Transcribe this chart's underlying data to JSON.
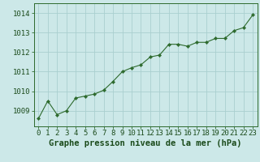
{
  "x": [
    0,
    1,
    2,
    3,
    4,
    5,
    6,
    7,
    8,
    9,
    10,
    11,
    12,
    13,
    14,
    15,
    16,
    17,
    18,
    19,
    20,
    21,
    22,
    23
  ],
  "y": [
    1008.6,
    1009.5,
    1008.8,
    1009.0,
    1009.65,
    1009.75,
    1009.85,
    1010.05,
    1010.5,
    1011.0,
    1011.2,
    1011.35,
    1011.75,
    1011.85,
    1012.4,
    1012.4,
    1012.3,
    1012.5,
    1012.5,
    1012.7,
    1012.7,
    1013.1,
    1013.25,
    1013.9
  ],
  "line_color": "#2d6a2d",
  "marker": "D",
  "marker_size": 2.2,
  "bg_color": "#cce8e8",
  "grid_color": "#aacfcf",
  "xlabel": "Graphe pression niveau de la mer (hPa)",
  "xlabel_color": "#1a4a1a",
  "xlabel_fontsize": 7.5,
  "tick_label_color": "#1a4a1a",
  "tick_label_fontsize": 6.5,
  "ylim": [
    1008.2,
    1014.5
  ],
  "xlim": [
    -0.5,
    23.5
  ],
  "yticks": [
    1009,
    1010,
    1011,
    1012,
    1013,
    1014
  ]
}
